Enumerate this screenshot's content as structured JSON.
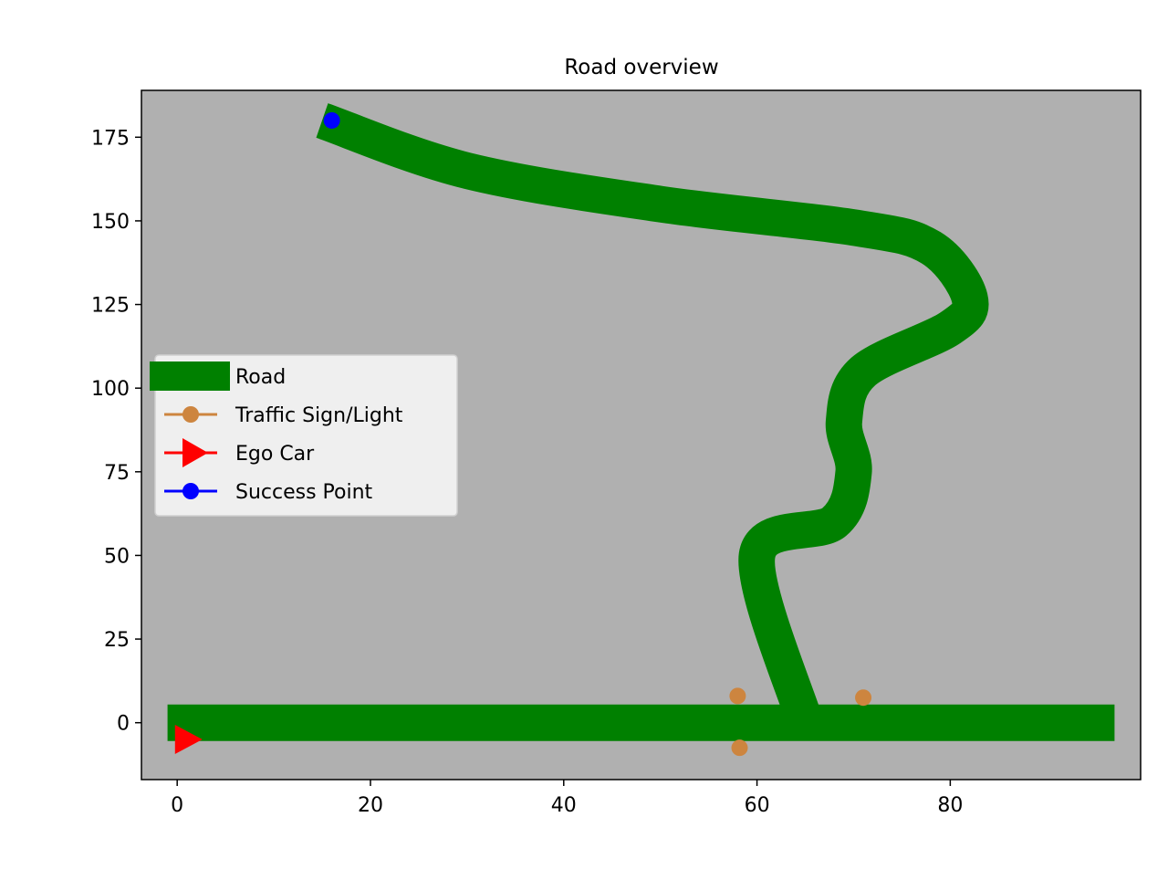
{
  "chart_data": {
    "type": "scatter",
    "title": "Road overview",
    "xlabel": "",
    "ylabel": "",
    "xlim": [
      -3.7,
      99.7
    ],
    "ylim": [
      -17,
      189
    ],
    "xticks": [
      0,
      20,
      40,
      60,
      80
    ],
    "yticks": [
      0,
      25,
      50,
      75,
      100,
      125,
      150,
      175
    ],
    "background_color": "#b0b0b0",
    "grid": false,
    "legend": {
      "placement": "center-left",
      "entries": [
        {
          "label": "Road",
          "color": "#008000",
          "marker": "thick-line"
        },
        {
          "label": "Traffic Sign/Light",
          "color": "#cd853f",
          "marker": "circle"
        },
        {
          "label": "Ego Car",
          "color": "#ff0000",
          "marker": "triangle-right"
        },
        {
          "label": "Success Point",
          "color": "#0000ff",
          "marker": "circle"
        }
      ]
    },
    "roads": [
      {
        "color": "#008000",
        "points": [
          [
            -1,
            0
          ],
          [
            97,
            0
          ]
        ]
      },
      {
        "color": "#008000",
        "points": [
          [
            65,
            0
          ],
          [
            60,
            50
          ],
          [
            68,
            60
          ],
          [
            70,
            75
          ],
          [
            69,
            90
          ],
          [
            71,
            105
          ],
          [
            80,
            118
          ],
          [
            82,
            127
          ],
          [
            78,
            142
          ],
          [
            70,
            148
          ],
          [
            50,
            155
          ],
          [
            30,
            165
          ],
          [
            15,
            180
          ]
        ]
      }
    ],
    "traffic_signs": {
      "color": "#cd853f",
      "points": [
        [
          58,
          8
        ],
        [
          71,
          7.5
        ],
        [
          58.2,
          -7.5
        ]
      ]
    },
    "ego_car": {
      "color": "#ff0000",
      "point": [
        1,
        -5
      ]
    },
    "success_point": {
      "color": "#0000ff",
      "point": [
        16,
        180
      ]
    }
  }
}
